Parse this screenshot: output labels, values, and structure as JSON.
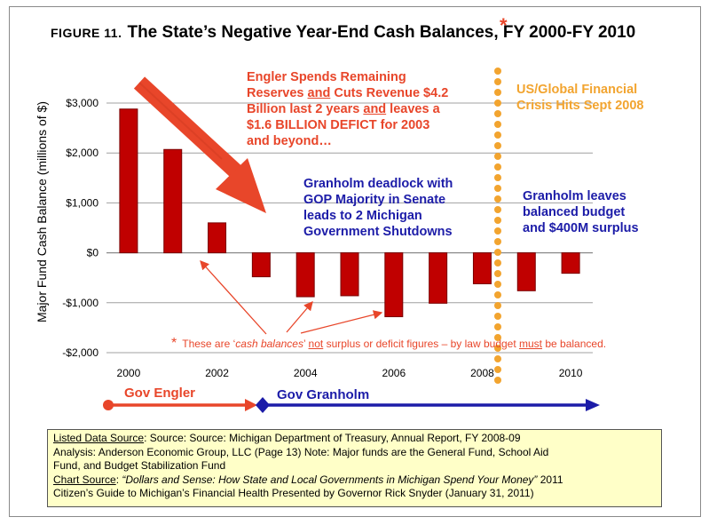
{
  "title": {
    "figure": "FIGURE 11.",
    "main": "The State’s Negative Year-End Cash Balances, FY 2000-FY 2010",
    "star": "*"
  },
  "chart_data": {
    "type": "bar",
    "categories": [
      "2000",
      "2001",
      "2002",
      "2003",
      "2004",
      "2005",
      "2006",
      "2007",
      "2008",
      "2009",
      "2010"
    ],
    "values": [
      2880,
      2070,
      600,
      -480,
      -880,
      -860,
      -1280,
      -1010,
      -620,
      -760,
      -410
    ],
    "x_tick_labels": [
      "2000",
      "2002",
      "2004",
      "2006",
      "2008",
      "2010"
    ],
    "y_tick_labels": [
      "$3,000",
      "$2,000",
      "$1,000",
      "$0",
      "-$1,000",
      "-$2,000"
    ],
    "y_ticks": [
      3000,
      2000,
      1000,
      0,
      -1000,
      -2000
    ],
    "ylim": [
      -2000,
      3000
    ],
    "ylabel": "Major Fund Cash Balance (millions of $)",
    "grid": true,
    "colors": {
      "bar": "#c00000",
      "bar_edge": "#7a0000",
      "grid": "#a0a0a0",
      "red": "#e8462a",
      "blue": "#1c1ca8",
      "orange": "#f2a42f"
    }
  },
  "annotations": {
    "engler_text": [
      "Engler Spends Remaining",
      "Reserves and Cuts Revenue $4.2",
      "Billion last  2 years and leaves a",
      "$1.6 BILLION DEFICT for 2003",
      "and beyond…"
    ],
    "deadlock_text": [
      "Granholm deadlock with",
      "GOP Majority in Senate",
      "leads to 2 Michigan",
      "Government Shutdowns"
    ],
    "crisis_text": [
      "US/Global Financial",
      "Crisis Hits Sept 2008"
    ],
    "surplus_text": [
      "Granholm leaves",
      "balanced budget",
      "and $400M surplus"
    ],
    "footnote": {
      "star": "*",
      "part1": "These are ‘",
      "italic": "cash balances",
      "part2": "’ ",
      "not": "not",
      "part3": " surplus or deficit figures – by law budget ",
      "must": "must",
      "part4": " be balanced."
    }
  },
  "governors": {
    "engler": "Gov Engler",
    "granholm": "Gov Granholm"
  },
  "source_box": {
    "listed_label": "Listed Data Source",
    "listed_text": ": Source: Source: Michigan Department of Treasury, Annual Report, FY 2008-09",
    "analysis": "Analysis: Anderson Economic Group, LLC (Page 13) Note: Major funds are the General Fund, School Aid",
    "analysis2": "Fund, and Budget Stabilization Fund",
    "chart_label": "Chart Source",
    "chart_colon": ": ",
    "chart_title": "“Dollars and Sense: How State and Local Governments in Michigan Spend Your Money”",
    "chart_year": " 2011",
    "citizens": "Citizen’s Guide to Michigan’s Financial Health Presented by Governor Rick Snyder (January 31, 2011)"
  }
}
